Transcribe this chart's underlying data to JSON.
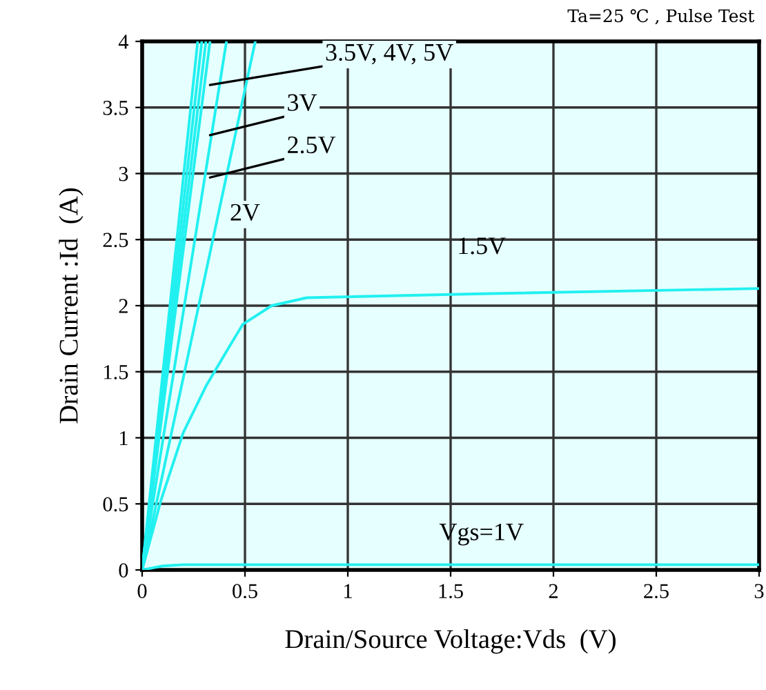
{
  "chart_data": {
    "type": "line",
    "xlabel": "Drain/Source Voltage:Vds  (V)",
    "ylabel": "Drain Current :Id  (A)",
    "xlim": [
      0,
      3
    ],
    "ylim": [
      0,
      4
    ],
    "xticks": [
      0,
      0.5,
      1,
      1.5,
      2,
      2.5,
      3
    ],
    "yticks": [
      0,
      0.5,
      1,
      1.5,
      2,
      2.5,
      3,
      3.5,
      4
    ],
    "grid": true,
    "line_style": "solid",
    "marker": "none",
    "series": [
      {
        "color": "#22f0f0",
        "x": [
          0,
          0.27
        ],
        "values": [
          0,
          4
        ]
      },
      {
        "color": "#22f0f0",
        "x": [
          0,
          0.29
        ],
        "values": [
          0,
          4
        ]
      },
      {
        "color": "#22f0f0",
        "x": [
          0,
          0.31
        ],
        "values": [
          0,
          4
        ]
      },
      {
        "color": "#22f0f0",
        "x": [
          0,
          0.33
        ],
        "values": [
          0,
          4
        ]
      },
      {
        "color": "#22f0f0",
        "x": [
          0,
          0.41
        ],
        "values": [
          0,
          4
        ]
      },
      {
        "color": "#22f0f0",
        "x": [
          0,
          0.55
        ],
        "values": [
          0,
          4
        ]
      },
      {
        "color": "#22f0f0",
        "x": [
          0,
          0.09,
          0.2,
          0.31,
          0.42,
          0.49,
          0.63,
          0.8,
          1.65,
          3
        ],
        "values": [
          0,
          0.52,
          1.04,
          1.39,
          1.68,
          1.86,
          2.0,
          2.06,
          2.09,
          2.13
        ]
      },
      {
        "color": "#22f0f0",
        "x": [
          0,
          0.1,
          0.2,
          3
        ],
        "values": [
          0,
          0.03,
          0.04,
          0.04
        ]
      }
    ],
    "annotations": [
      {
        "text": "3.5V, 4V, 5V",
        "x": 0.33,
        "y": 3.67
      },
      {
        "text": "3V",
        "x": 0.33,
        "y": 3.29
      },
      {
        "text": "2.5V",
        "x": 0.33,
        "y": 2.97
      },
      {
        "text": "2V",
        "x": 0.5,
        "y": 2.69
      },
      {
        "text": "1.5V",
        "x": 1.65,
        "y": 2.09
      },
      {
        "text": "Vgs=1V",
        "x": 1.65,
        "y": 0.04
      },
      "Ta=25 ℃ , Pulse Test"
    ]
  }
}
